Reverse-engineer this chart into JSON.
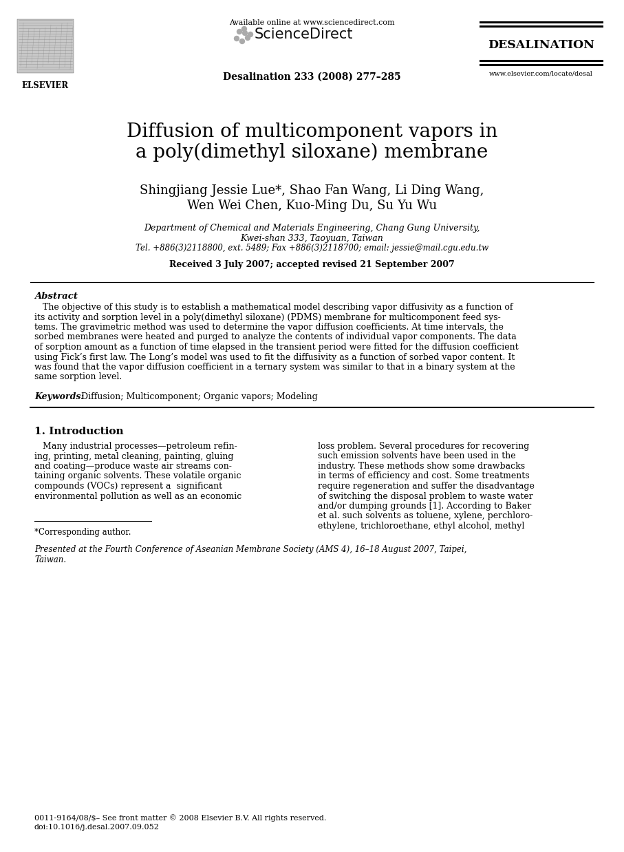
{
  "page_bg": "#ffffff",
  "title_line1": "Diffusion of multicomponent vapors in",
  "title_line2": "a poly(dimethyl siloxane) membrane",
  "authors_line1": "Shingjiang Jessie Lue*, Shao Fan Wang, Li Ding Wang,",
  "authors_line2": "Wen Wei Chen, Kuo-Ming Du, Su Yu Wu",
  "affiliation1": "Department of Chemical and Materials Engineering, Chang Gung University,",
  "affiliation2": "Kwei-shan 333, Taoyuan, Taiwan",
  "contact": "Tel. +886(3)2118800, ext. 5489; Fax +886(3)2118700; email: jessie@mail.cgu.edu.tw",
  "received": "Received 3 July 2007; accepted revised 21 September 2007",
  "journal_info": "Desalination 233 (2008) 277–285",
  "available_online": "Available online at www.sciencedirect.com",
  "sciencedirect_text": "ScienceDirect",
  "desalination_text": "DESALINATION",
  "elsevier_text": "ELSEVIER",
  "url_text": "www.elsevier.com/locate/desal",
  "abstract_title": "Abstract",
  "abstract_indent": "   The objective of this study is to establish a mathematical model describing vapor diffusivity as a function of",
  "abstract_line2": "its activity and sorption level in a poly(dimethyl siloxane) (PDMS) membrane for multicomponent feed sys-",
  "abstract_line3": "tems. The gravimetric method was used to determine the vapor diffusion coefficients. At time intervals, the",
  "abstract_line4": "sorbed membranes were heated and purged to analyze the contents of individual vapor components. The data",
  "abstract_line5": "of sorption amount as a function of time elapsed in the transient period were fitted for the diffusion coefficient",
  "abstract_line6": "using Fick’s first law. The Long’s model was used to fit the diffusivity as a function of sorbed vapor content. It",
  "abstract_line7": "was found that the vapor diffusion coefficient in a ternary system was similar to that in a binary system at the",
  "abstract_line8": "same sorption level.",
  "keywords_label": "Keywords:",
  "keywords_text": " Diffusion; Multicomponent; Organic vapors; Modeling",
  "section1_title": "1. Introduction",
  "col1_line1": "   Many industrial processes—petroleum refin-",
  "col1_line2": "ing, printing, metal cleaning, painting, gluing",
  "col1_line3": "and coating—produce waste air streams con-",
  "col1_line4": "taining organic solvents. These volatile organic",
  "col1_line5": "compounds (VOCs) represent a  significant",
  "col1_line6": "environmental pollution as well as an economic",
  "col2_line1": "loss problem. Several procedures for recovering",
  "col2_line2": "such emission solvents have been used in the",
  "col2_line3": "industry. These methods show some drawbacks",
  "col2_line4": "in terms of efficiency and cost. Some treatments",
  "col2_line5": "require regeneration and suffer the disadvantage",
  "col2_line6": "of switching the disposal problem to waste water",
  "col2_line7": "and/or dumping grounds [1]. According to Baker",
  "col2_line8": "et al. such solvents as toluene, xylene, perchloro-",
  "col2_line9": "ethylene, trichloroethane, ethyl alcohol, methyl",
  "footnote1": "*Corresponding author.",
  "footnote2_line1": "Presented at the Fourth Conference of Aseanian Membrane Society (AMS 4), 16–18 August 2007, Taipei,",
  "footnote2_line2": "Taiwan.",
  "footer1": "0011-9164/08/$– See front matter © 2008 Elsevier B.V. All rights reserved.",
  "footer2": "doi:10.1016/j.desal.2007.09.052"
}
